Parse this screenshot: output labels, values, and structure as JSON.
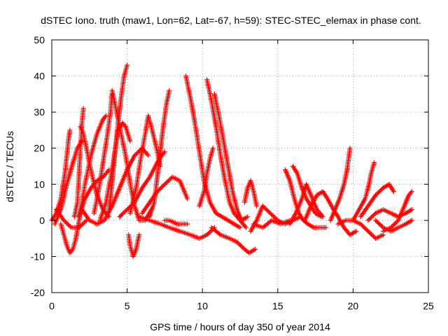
{
  "chart_data": {
    "type": "scatter",
    "title": "dSTEC Iono. truth (maw1, Lon=62, Lat=-67, h=59): STEC-STEC_elemax in phase cont.",
    "xlabel": "GPS time / hours of day 350 of year 2014",
    "ylabel": "dSTEC  / TECUs",
    "xlim": [
      0,
      25
    ],
    "ylim": [
      -20,
      50
    ],
    "xticks": [
      0,
      5,
      10,
      15,
      20,
      25
    ],
    "yticks": [
      -20,
      -10,
      0,
      10,
      20,
      30,
      40,
      50
    ],
    "grid": true,
    "marker": "+",
    "color": "#ff0000",
    "arcs": [
      [
        [
          0.0,
          0.0
        ],
        [
          0.3,
          2.0
        ],
        [
          0.6,
          6.0
        ],
        [
          0.9,
          14.0
        ],
        [
          1.1,
          22.0
        ],
        [
          1.2,
          25.0
        ]
      ],
      [
        [
          0.2,
          -1.0
        ],
        [
          0.6,
          3.0
        ],
        [
          1.0,
          10.0
        ],
        [
          1.4,
          16.0
        ],
        [
          1.7,
          20.0
        ],
        [
          2.0,
          22.0
        ]
      ],
      [
        [
          0.6,
          -1.0
        ],
        [
          0.8,
          -4.0
        ],
        [
          1.0,
          -7.0
        ],
        [
          1.2,
          -9.0
        ],
        [
          1.4,
          -8.0
        ],
        [
          1.6,
          -5.0
        ],
        [
          1.9,
          2.0
        ],
        [
          2.2,
          10.0
        ],
        [
          2.6,
          18.0
        ],
        [
          3.0,
          24.0
        ],
        [
          3.4,
          28.0
        ],
        [
          3.6,
          29.0
        ]
      ],
      [
        [
          1.5,
          1.0
        ],
        [
          1.7,
          5.0
        ],
        [
          1.8,
          12.0
        ],
        [
          1.9,
          20.0
        ],
        [
          2.0,
          27.0
        ],
        [
          2.1,
          31.0
        ]
      ],
      [
        [
          1.9,
          26.0
        ],
        [
          2.1,
          24.0
        ],
        [
          2.4,
          18.0
        ],
        [
          2.7,
          12.0
        ],
        [
          3.0,
          7.0
        ],
        [
          3.4,
          3.0
        ],
        [
          3.8,
          1.0
        ]
      ],
      [
        [
          0.3,
          3.0
        ],
        [
          0.8,
          0.0
        ],
        [
          1.3,
          -2.0
        ],
        [
          1.8,
          -2.0
        ],
        [
          2.3,
          0.0
        ]
      ],
      [
        [
          1.8,
          1.0
        ],
        [
          2.2,
          6.0
        ],
        [
          2.6,
          9.0
        ],
        [
          3.0,
          11.0
        ],
        [
          3.4,
          12.0
        ],
        [
          3.8,
          14.0
        ]
      ],
      [
        [
          2.8,
          2.0
        ],
        [
          3.1,
          8.0
        ],
        [
          3.4,
          16.0
        ],
        [
          3.7,
          24.0
        ],
        [
          3.9,
          30.0
        ],
        [
          4.0,
          35.0
        ]
      ],
      [
        [
          3.8,
          3.0
        ],
        [
          4.0,
          10.0
        ],
        [
          4.2,
          19.0
        ],
        [
          4.4,
          27.0
        ],
        [
          4.6,
          34.0
        ],
        [
          4.8,
          40.0
        ],
        [
          5.0,
          43.0
        ]
      ],
      [
        [
          4.0,
          36.0
        ],
        [
          4.3,
          30.0
        ],
        [
          4.6,
          24.0
        ],
        [
          4.9,
          18.0
        ],
        [
          5.1,
          13.0
        ],
        [
          5.3,
          8.0
        ],
        [
          5.5,
          4.0
        ],
        [
          5.8,
          0.0
        ],
        [
          6.2,
          0.0
        ],
        [
          6.6,
          3.0
        ]
      ],
      [
        [
          3.2,
          0.0
        ],
        [
          3.6,
          5.0
        ],
        [
          4.0,
          14.0
        ],
        [
          4.4,
          25.0
        ],
        [
          4.7,
          27.0
        ],
        [
          4.9,
          26.0
        ],
        [
          5.2,
          22.0
        ]
      ],
      [
        [
          5.1,
          -4.0
        ],
        [
          5.2,
          -7.0
        ],
        [
          5.4,
          -10.0
        ],
        [
          5.6,
          -8.0
        ],
        [
          5.8,
          -4.0
        ]
      ],
      [
        [
          2.0,
          3.0
        ],
        [
          2.5,
          0.0
        ],
        [
          3.0,
          -1.0
        ],
        [
          3.5,
          0.0
        ],
        [
          4.0,
          4.0
        ],
        [
          4.5,
          9.0
        ],
        [
          5.0,
          14.0
        ],
        [
          5.5,
          18.0
        ],
        [
          6.0,
          20.0
        ],
        [
          6.4,
          18.0
        ]
      ],
      [
        [
          5.2,
          2.0
        ],
        [
          5.6,
          9.0
        ],
        [
          5.9,
          17.0
        ],
        [
          6.2,
          24.0
        ],
        [
          6.4,
          29.0
        ],
        [
          6.6,
          26.0
        ],
        [
          6.9,
          21.0
        ],
        [
          7.2,
          15.0
        ]
      ],
      [
        [
          6.5,
          1.0
        ],
        [
          6.8,
          5.0
        ],
        [
          7.0,
          12.0
        ],
        [
          7.2,
          19.0
        ],
        [
          7.4,
          26.0
        ],
        [
          7.6,
          32.0
        ],
        [
          7.8,
          36.0
        ]
      ],
      [
        [
          6.0,
          2.0
        ],
        [
          6.5,
          5.0
        ],
        [
          7.0,
          8.0
        ],
        [
          7.5,
          10.0
        ],
        [
          8.0,
          12.0
        ],
        [
          8.5,
          11.0
        ],
        [
          8.8,
          8.0
        ],
        [
          9.0,
          6.0
        ]
      ],
      [
        [
          4.5,
          1.0
        ],
        [
          5.0,
          3.0
        ],
        [
          5.5,
          5.0
        ],
        [
          6.0,
          9.0
        ],
        [
          6.5,
          12.0
        ],
        [
          7.0,
          16.0
        ],
        [
          7.3,
          18.0
        ],
        [
          7.5,
          19.0
        ]
      ],
      [
        [
          7.5,
          0.0
        ],
        [
          7.8,
          0.0
        ],
        [
          8.3,
          -1.0
        ],
        [
          8.6,
          -1.0
        ],
        [
          9.0,
          -1.0
        ]
      ],
      [
        [
          8.9,
          40.0
        ],
        [
          9.2,
          34.0
        ],
        [
          9.5,
          27.0
        ],
        [
          9.8,
          19.0
        ],
        [
          10.1,
          11.0
        ],
        [
          10.5,
          5.0
        ],
        [
          10.9,
          2.0
        ],
        [
          11.3,
          1.0
        ],
        [
          11.7,
          0.0
        ],
        [
          12.1,
          -1.0
        ],
        [
          12.5,
          -2.0
        ]
      ],
      [
        [
          10.3,
          39.0
        ],
        [
          10.6,
          33.0
        ],
        [
          10.9,
          26.0
        ],
        [
          11.2,
          18.0
        ],
        [
          11.5,
          11.0
        ],
        [
          11.8,
          5.0
        ],
        [
          12.1,
          2.0
        ],
        [
          12.5,
          0.0
        ],
        [
          12.9,
          -2.0
        ]
      ],
      [
        [
          10.8,
          35.0
        ],
        [
          11.1,
          29.0
        ],
        [
          11.4,
          22.0
        ],
        [
          11.7,
          15.0
        ],
        [
          12.0,
          8.0
        ],
        [
          12.3,
          3.0
        ],
        [
          12.6,
          0.0
        ],
        [
          13.0,
          1.0
        ]
      ],
      [
        [
          5.8,
          1.0
        ],
        [
          6.5,
          0.0
        ],
        [
          7.2,
          -1.0
        ],
        [
          7.8,
          -2.0
        ],
        [
          8.5,
          -3.0
        ],
        [
          9.2,
          -4.0
        ],
        [
          9.8,
          -5.0
        ],
        [
          10.3,
          -4.0
        ],
        [
          10.8,
          -2.0
        ]
      ],
      [
        [
          9.8,
          4.0
        ],
        [
          10.1,
          8.0
        ],
        [
          10.3,
          13.0
        ],
        [
          10.5,
          17.0
        ],
        [
          10.7,
          20.0
        ]
      ],
      [
        [
          10.6,
          -2.0
        ],
        [
          11.2,
          -4.0
        ],
        [
          11.8,
          -5.0
        ],
        [
          12.3,
          -6.0
        ],
        [
          12.8,
          -8.0
        ],
        [
          13.1,
          -9.0
        ],
        [
          13.5,
          -8.0
        ]
      ],
      [
        [
          12.8,
          5.0
        ],
        [
          13.0,
          9.0
        ],
        [
          13.2,
          11.0
        ],
        [
          13.4,
          8.0
        ],
        [
          13.6,
          4.0
        ]
      ],
      [
        [
          13.2,
          -3.0
        ],
        [
          13.6,
          0.0
        ],
        [
          14.0,
          4.0
        ],
        [
          14.5,
          2.0
        ],
        [
          15.0,
          0.0
        ],
        [
          15.5,
          -1.0
        ],
        [
          16.0,
          0.0
        ],
        [
          16.5,
          1.0
        ]
      ],
      [
        [
          13.4,
          -1.0
        ],
        [
          14.0,
          -2.0
        ],
        [
          14.6,
          0.0
        ],
        [
          15.2,
          -1.0
        ],
        [
          15.8,
          0.0
        ]
      ],
      [
        [
          15.5,
          14.0
        ],
        [
          15.8,
          11.0
        ],
        [
          16.1,
          6.0
        ],
        [
          16.4,
          2.0
        ],
        [
          16.7,
          0.0
        ],
        [
          17.0,
          -1.0
        ],
        [
          17.4,
          -2.0
        ],
        [
          17.8,
          -2.0
        ],
        [
          18.2,
          -2.0
        ]
      ],
      [
        [
          16.0,
          15.0
        ],
        [
          16.3,
          13.0
        ],
        [
          16.6,
          9.0
        ],
        [
          16.9,
          6.0
        ],
        [
          17.2,
          4.0
        ],
        [
          17.5,
          2.0
        ],
        [
          17.9,
          1.0
        ]
      ],
      [
        [
          15.8,
          -1.0
        ],
        [
          16.2,
          2.0
        ],
        [
          16.6,
          6.0
        ],
        [
          16.9,
          10.0
        ],
        [
          17.2,
          7.0
        ],
        [
          17.6,
          3.0
        ],
        [
          18.0,
          1.0
        ]
      ],
      [
        [
          16.8,
          0.0
        ],
        [
          17.2,
          4.0
        ],
        [
          17.6,
          7.0
        ],
        [
          18.0,
          8.0
        ],
        [
          18.3,
          6.0
        ],
        [
          18.7,
          3.0
        ],
        [
          19.0,
          1.0
        ],
        [
          19.4,
          -2.0
        ],
        [
          19.8,
          -4.0
        ],
        [
          20.2,
          -3.0
        ]
      ],
      [
        [
          18.5,
          0.0
        ],
        [
          18.8,
          3.0
        ],
        [
          19.1,
          6.0
        ],
        [
          19.4,
          10.0
        ],
        [
          19.6,
          14.0
        ],
        [
          19.8,
          20.0
        ]
      ],
      [
        [
          19.0,
          -1.0
        ],
        [
          19.5,
          0.0
        ],
        [
          20.0,
          0.0
        ],
        [
          20.5,
          -1.0
        ],
        [
          21.0,
          -3.0
        ],
        [
          21.5,
          -5.0
        ],
        [
          22.0,
          -4.0
        ]
      ],
      [
        [
          20.0,
          0.0
        ],
        [
          20.4,
          3.0
        ],
        [
          20.8,
          6.0
        ],
        [
          21.0,
          9.0
        ],
        [
          21.2,
          13.0
        ],
        [
          21.4,
          16.0
        ]
      ],
      [
        [
          20.5,
          1.0
        ],
        [
          21.0,
          4.0
        ],
        [
          21.5,
          7.0
        ],
        [
          22.0,
          9.0
        ],
        [
          22.4,
          10.0
        ],
        [
          22.7,
          8.0
        ]
      ],
      [
        [
          21.0,
          0.0
        ],
        [
          21.5,
          2.0
        ],
        [
          22.0,
          3.0
        ],
        [
          22.5,
          2.0
        ],
        [
          23.0,
          1.0
        ],
        [
          23.5,
          2.0
        ],
        [
          23.9,
          3.0
        ]
      ],
      [
        [
          22.0,
          -3.0
        ],
        [
          22.5,
          -2.0
        ],
        [
          23.0,
          0.0
        ],
        [
          23.4,
          4.0
        ],
        [
          23.7,
          7.0
        ],
        [
          23.9,
          8.0
        ]
      ],
      [
        [
          21.5,
          0.0
        ],
        [
          22.0,
          -2.0
        ],
        [
          22.5,
          -3.0
        ],
        [
          23.0,
          -2.0
        ],
        [
          23.5,
          -1.0
        ],
        [
          23.9,
          0.0
        ]
      ]
    ]
  }
}
